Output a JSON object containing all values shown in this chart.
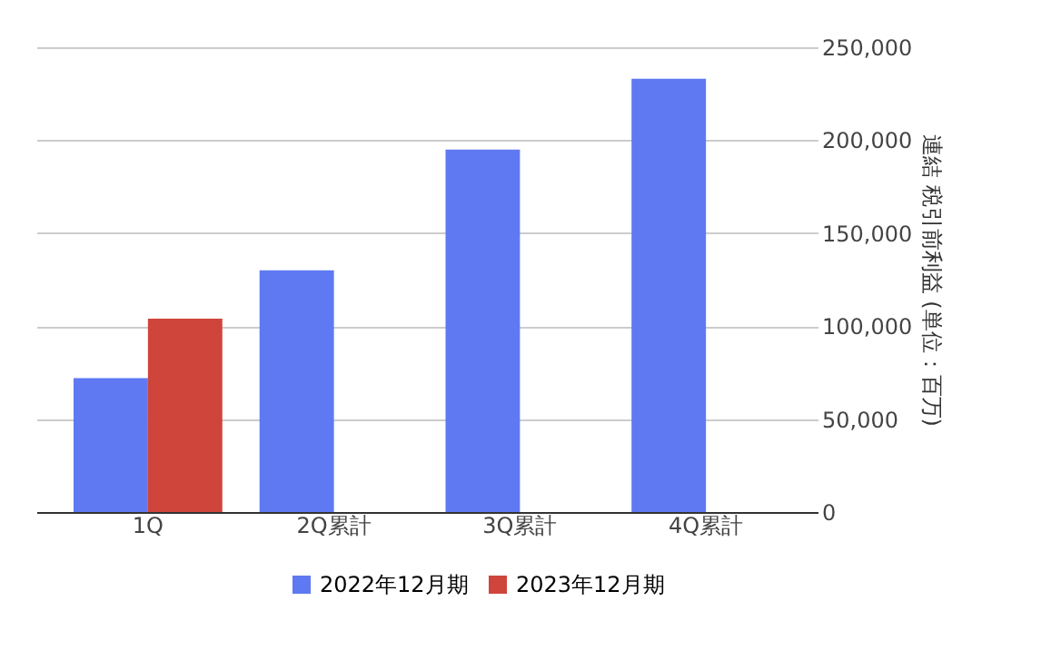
{
  "chart_data": {
    "type": "bar",
    "categories": [
      "1Q",
      "2Q累計",
      "3Q累計",
      "4Q累計"
    ],
    "series": [
      {
        "name": "2022年12月期",
        "color": "#5f79f2",
        "axis": "y2",
        "values": [
          72000,
          130000,
          195000,
          233000
        ]
      },
      {
        "name": "2023年12月期",
        "color": "#cf453b",
        "axis": "y2",
        "values": [
          104000,
          null,
          null,
          null
        ]
      }
    ],
    "y2label": "連結 税引前利益 (単位：百万)",
    "y2lim": [
      0,
      250000
    ],
    "y2ticks": [
      0,
      {
        "value": 50000,
        "label": "50,000"
      },
      {
        "value": 100000,
        "label": "100,000"
      },
      {
        "value": 150000,
        "label": "150,000"
      },
      {
        "value": 200000,
        "label": "200,000"
      },
      {
        "value": 250000,
        "label": "250,000"
      }
    ],
    "grid": "y",
    "legend": "bottom"
  }
}
